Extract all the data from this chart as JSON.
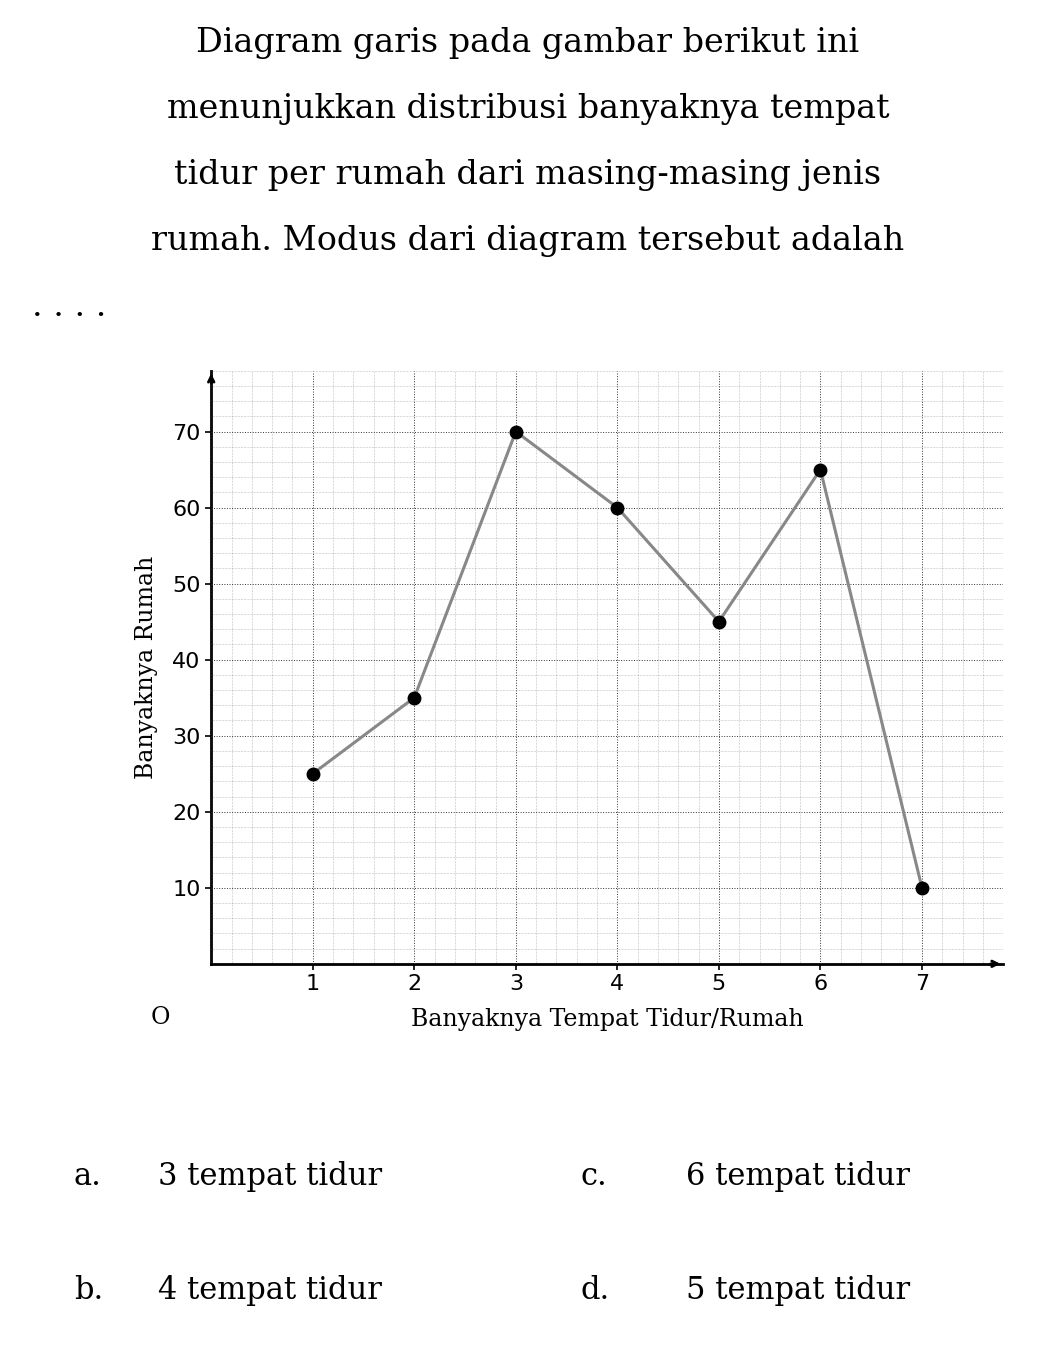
{
  "xlabel": "Banyaknya Tempat Tidur/Rumah",
  "ylabel": "Banyaknya Rumah",
  "x_values": [
    1,
    2,
    3,
    4,
    5,
    6,
    7
  ],
  "y_values": [
    25,
    35,
    70,
    60,
    45,
    65,
    10
  ],
  "xlim": [
    0,
    7.8
  ],
  "ylim": [
    0,
    78
  ],
  "yticks": [
    10,
    20,
    30,
    40,
    50,
    60,
    70
  ],
  "xticks": [
    1,
    2,
    3,
    4,
    5,
    6,
    7
  ],
  "line_color": "#888888",
  "marker_color": "#000000",
  "marker_size": 9,
  "line_width": 2.2,
  "background_color": "#ffffff",
  "origin_label": "O",
  "title_lines": [
    "Diagram garis pada gambar berikut ini",
    "menunjukkan distribusi banyaknya tempat",
    "tidur per rumah dari masing-masing jenis",
    "rumah. Modus dari diagram tersebut adalah",
    ". . . ."
  ],
  "opts_left_letter": [
    "a.",
    "b."
  ],
  "opts_left_text": [
    "3 tempat tidur",
    "4 tempat tidur"
  ],
  "opts_right_letter": [
    "c.",
    "d."
  ],
  "opts_right_text": [
    "6 tempat tidur",
    "5 tempat tidur"
  ]
}
